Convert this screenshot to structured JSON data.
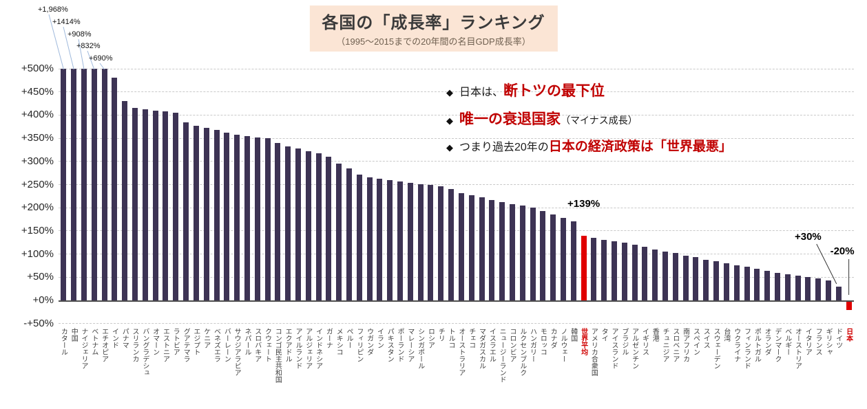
{
  "chart_data": {
    "type": "bar",
    "title": "各国の「成長率」ランキング",
    "subtitle": "（1995〜2015までの20年間の名目GDP成長率）",
    "ylim": [
      -50,
      500
    ],
    "ytick_step": 50,
    "ytick_labels_top_to_bottom": [
      "+500%",
      "+450%",
      "+400%",
      "+350%",
      "+300%",
      "+250%",
      "+200%",
      "+150%",
      "+100%",
      "+50%",
      "+0%",
      "-+50%"
    ],
    "clip_max": 500,
    "grid": "dashed-horizontal",
    "bar_color": "#3d3354",
    "highlight_color": "#e00000",
    "highlight_indices": [
      51,
      77
    ],
    "categories": [
      "カタール",
      "中国",
      "ナイジェリア",
      "ベトナム",
      "エチオピア",
      "インド",
      "パナマ",
      "スリランカ",
      "バングラデシュ",
      "オマーン",
      "エストニア",
      "ラトビア",
      "グアテマラ",
      "エジプト",
      "ケニア",
      "ベネズエラ",
      "バーレーン",
      "サウジアラビア",
      "ネパール",
      "スロバキア",
      "クウェート",
      "コンゴ民主共和国",
      "エクアドル",
      "アイルランド",
      "アルジェリア",
      "インドネシア",
      "ガーナ",
      "メキシコ",
      "ペルー",
      "フィリピン",
      "ウガンダ",
      "イラン",
      "パキスタン",
      "ポーランド",
      "マレーシア",
      "シンガポール",
      "ロシア",
      "チリ",
      "トルコ",
      "オーストラリア",
      "チェコ",
      "マダガスカル",
      "イスラエル",
      "ニュージーランド",
      "コロンビア",
      "ルクセンブルク",
      "ハンガリー",
      "モロッコ",
      "カナダ",
      "ノルウェー",
      "韓国",
      "世界平均",
      "アメリカ合衆国",
      "タイ",
      "アイスランド",
      "ブラジル",
      "アルゼンチン",
      "イギリス",
      "香港",
      "チュニジア",
      "スロベニア",
      "南アフリカ",
      "スペイン",
      "スイス",
      "スウェーデン",
      "台湾",
      "ウクライナ",
      "フィンランド",
      "ポルトガル",
      "オランダ",
      "デンマーク",
      "ベルギー",
      "オーストリア",
      "イタリア",
      "フランス",
      "ギリシャ",
      "ドイツ",
      "日本"
    ],
    "values": [
      1968,
      1414,
      908,
      832,
      690,
      480,
      430,
      415,
      412,
      410,
      408,
      405,
      385,
      377,
      373,
      368,
      362,
      358,
      355,
      352,
      350,
      340,
      333,
      328,
      322,
      318,
      310,
      295,
      285,
      272,
      266,
      262,
      259,
      256,
      253,
      251,
      249,
      246,
      240,
      232,
      227,
      222,
      217,
      212,
      208,
      205,
      200,
      193,
      186,
      178,
      170,
      139,
      135,
      131,
      128,
      125,
      120,
      115,
      110,
      106,
      102,
      97,
      93,
      88,
      84,
      80,
      76,
      72,
      68,
      64,
      60,
      57,
      54,
      51,
      48,
      43,
      30,
      -20
    ],
    "clipped_bar_annotations": [
      {
        "index": 0,
        "label": "+1,968%"
      },
      {
        "index": 1,
        "label": "+1414%"
      },
      {
        "index": 2,
        "label": "+908%"
      },
      {
        "index": 3,
        "label": "+832%"
      },
      {
        "index": 4,
        "label": "+690%"
      }
    ],
    "point_annotations": [
      {
        "index": 51,
        "label": "+139%"
      },
      {
        "index": 76,
        "label": "+30%"
      },
      {
        "index": 77,
        "label": "-20%"
      }
    ]
  },
  "colors": {
    "title_bg": "#fbe5d5",
    "accent_red": "#c00000",
    "leader_line_blue": "#9fb9dc"
  },
  "callouts": {
    "bullet_glyph": "◆",
    "items": [
      {
        "pre": "日本は、",
        "em": "断トツの最下位",
        "post": ""
      },
      {
        "pre": "",
        "em": "唯一の衰退国家",
        "post": "（マイナス成長）"
      },
      {
        "pre": "つまり過去20年の",
        "em": "日本の経済政策は「世界最悪」",
        "post": ""
      }
    ]
  }
}
